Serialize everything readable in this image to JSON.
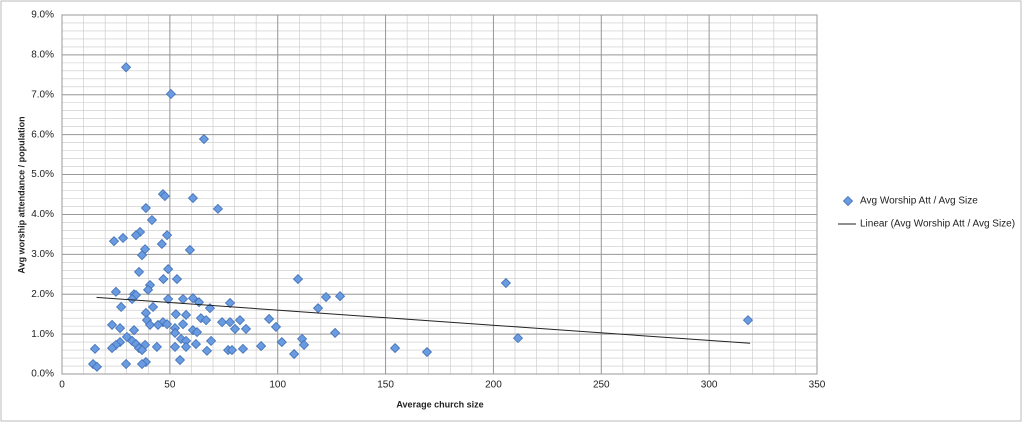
{
  "chart_data": {
    "type": "scatter",
    "x_label": "Average church size",
    "y_label": "Avg worship attendance / population",
    "xlim": [
      0,
      350
    ],
    "xticks": [
      0,
      50,
      100,
      150,
      200,
      250,
      300,
      350
    ],
    "ylim": [
      0,
      9
    ],
    "yticks": [
      {
        "value": 0,
        "label": "0.0%"
      },
      {
        "value": 1,
        "label": "1.0%"
      },
      {
        "value": 2,
        "label": "2.0%"
      },
      {
        "value": 3,
        "label": "3.0%"
      },
      {
        "value": 4,
        "label": "4.0%"
      },
      {
        "value": 5,
        "label": "5.0%"
      },
      {
        "value": 6,
        "label": "6.0%"
      },
      {
        "value": 7,
        "label": "7.0%"
      },
      {
        "value": 8,
        "label": "8.0%"
      },
      {
        "value": 9,
        "label": "9.0%"
      }
    ],
    "grid": true,
    "minor_grid": {
      "x": 10,
      "y": 0.2
    },
    "legend": "right",
    "series": [
      {
        "name": "Avg Worship Att / Avg Size",
        "color": "#6a9be0",
        "x": [
          29.7,
          50.5,
          65.8,
          46.8,
          47.7,
          38.9,
          72.3,
          60.7,
          41.7,
          36.2,
          34.3,
          48.7,
          28.3,
          24.1,
          46.3,
          38.5,
          59.3,
          37.1,
          49.2,
          35.7,
          47.0,
          53.3,
          109.4,
          205.8,
          40.8,
          39.9,
          25.0,
          33.4,
          34.3,
          122.4,
          128.9,
          32.5,
          49.2,
          56.1,
          60.7,
          63.5,
          77.9,
          27.4,
          42.2,
          68.6,
          118.7,
          38.9,
          52.8,
          57.5,
          64.4,
          66.8,
          82.5,
          96.0,
          318.0,
          39.4,
          46.8,
          74.2,
          77.9,
          23.2,
          40.8,
          44.5,
          48.7,
          56.1,
          26.9,
          52.4,
          99.2,
          33.4,
          60.7,
          62.6,
          52.4,
          80.2,
          85.3,
          126.6,
          30.1,
          211.4,
          111.3,
          26.9,
          32.5,
          55.2,
          57.5,
          69.1,
          101.9,
          34.3,
          25.0,
          38.5,
          62.1,
          112.2,
          23.2,
          35.7,
          44.0,
          52.4,
          57.5,
          92.3,
          83.9,
          77.0,
          78.8,
          154.4,
          15.3,
          37.1,
          67.2,
          169.2,
          107.6,
          54.7,
          38.9,
          37.1,
          29.7,
          14.4,
          16.2
        ],
        "values": [
          7.69,
          7.02,
          5.89,
          4.51,
          4.46,
          4.16,
          4.14,
          4.41,
          3.86,
          3.56,
          3.48,
          3.48,
          3.41,
          3.33,
          3.26,
          3.13,
          3.11,
          2.98,
          2.63,
          2.56,
          2.38,
          2.38,
          2.38,
          2.28,
          2.23,
          2.11,
          2.06,
          2.0,
          1.98,
          1.93,
          1.95,
          1.88,
          1.88,
          1.88,
          1.9,
          1.8,
          1.78,
          1.68,
          1.68,
          1.65,
          1.65,
          1.53,
          1.5,
          1.48,
          1.4,
          1.35,
          1.35,
          1.38,
          1.35,
          1.35,
          1.3,
          1.3,
          1.3,
          1.23,
          1.23,
          1.23,
          1.25,
          1.25,
          1.15,
          1.15,
          1.18,
          1.1,
          1.1,
          1.05,
          1.03,
          1.13,
          1.13,
          1.03,
          0.93,
          0.9,
          0.88,
          0.8,
          0.83,
          0.88,
          0.83,
          0.83,
          0.8,
          0.75,
          0.73,
          0.73,
          0.75,
          0.73,
          0.65,
          0.65,
          0.68,
          0.68,
          0.68,
          0.7,
          0.63,
          0.6,
          0.6,
          0.65,
          0.63,
          0.6,
          0.58,
          0.55,
          0.5,
          0.35,
          0.3,
          0.25,
          0.25,
          0.25,
          0.18
        ]
      }
    ],
    "trendline": {
      "name": "Linear (Avg Worship Att / Avg Size)",
      "color": "#222222",
      "x": [
        16,
        319
      ],
      "values": [
        1.92,
        0.77
      ]
    }
  }
}
